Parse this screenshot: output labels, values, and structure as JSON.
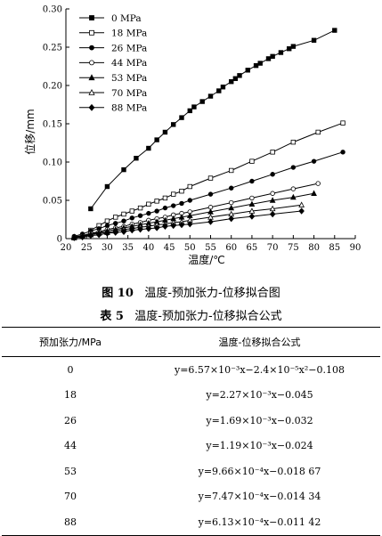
{
  "chart_data": {
    "type": "line",
    "xlabel": "温度/℃",
    "ylabel": "位移/mm",
    "xlim": [
      20,
      90
    ],
    "ylim": [
      0,
      0.3
    ],
    "xticks": [
      "20",
      "25",
      "30",
      "35",
      "40",
      "45",
      "50",
      "55",
      "60",
      "65",
      "70",
      "75",
      "80",
      "85",
      "90"
    ],
    "yticks": [
      "0",
      "0.05",
      "0.10",
      "0.15",
      "0.20",
      "0.25",
      "0.30"
    ],
    "legend_position": "top-left",
    "series": [
      {
        "name": "0 MPa",
        "marker": "square-filled",
        "x": [
          26,
          30,
          34,
          37,
          40,
          42,
          44,
          46,
          48,
          50,
          51,
          53,
          55,
          57,
          58,
          60,
          61,
          62,
          64,
          66,
          67,
          69,
          70,
          72,
          74,
          75,
          80,
          85
        ],
        "y": [
          0.039,
          0.068,
          0.09,
          0.105,
          0.118,
          0.129,
          0.139,
          0.149,
          0.158,
          0.167,
          0.172,
          0.179,
          0.186,
          0.193,
          0.198,
          0.205,
          0.209,
          0.213,
          0.22,
          0.226,
          0.229,
          0.235,
          0.238,
          0.243,
          0.248,
          0.251,
          0.259,
          0.272
        ]
      },
      {
        "name": "18 MPa",
        "marker": "square-open",
        "x": [
          26,
          28,
          30,
          32,
          34,
          36,
          38,
          40,
          42,
          44,
          46,
          48,
          50,
          55,
          60,
          65,
          70,
          75,
          81,
          87
        ],
        "y": [
          0.011,
          0.017,
          0.023,
          0.028,
          0.032,
          0.036,
          0.04,
          0.045,
          0.049,
          0.053,
          0.058,
          0.062,
          0.068,
          0.079,
          0.089,
          0.101,
          0.113,
          0.126,
          0.139,
          0.151
        ]
      },
      {
        "name": "26 MPa",
        "marker": "circle-filled",
        "x": [
          22,
          24,
          26,
          28,
          30,
          32,
          34,
          36,
          38,
          40,
          42,
          44,
          46,
          48,
          50,
          55,
          60,
          65,
          70,
          75,
          80,
          87
        ],
        "y": [
          0.003,
          0.006,
          0.01,
          0.013,
          0.017,
          0.02,
          0.023,
          0.027,
          0.03,
          0.033,
          0.036,
          0.04,
          0.043,
          0.046,
          0.05,
          0.058,
          0.066,
          0.075,
          0.084,
          0.093,
          0.101,
          0.113
        ]
      },
      {
        "name": "44 MPa",
        "marker": "circle-open",
        "x": [
          22,
          24,
          26,
          28,
          30,
          32,
          34,
          36,
          38,
          40,
          42,
          44,
          46,
          48,
          50,
          55,
          60,
          65,
          70,
          75,
          81
        ],
        "y": [
          0.002,
          0.004,
          0.007,
          0.009,
          0.012,
          0.014,
          0.016,
          0.019,
          0.021,
          0.024,
          0.026,
          0.028,
          0.031,
          0.033,
          0.035,
          0.041,
          0.047,
          0.053,
          0.059,
          0.065,
          0.072
        ]
      },
      {
        "name": "53 MPa",
        "marker": "triangle-filled",
        "x": [
          22,
          24,
          26,
          28,
          30,
          32,
          34,
          36,
          38,
          40,
          42,
          44,
          46,
          48,
          50,
          55,
          60,
          65,
          70,
          75,
          80
        ],
        "y": [
          0.002,
          0.004,
          0.006,
          0.008,
          0.01,
          0.012,
          0.014,
          0.016,
          0.018,
          0.02,
          0.022,
          0.024,
          0.026,
          0.028,
          0.03,
          0.035,
          0.04,
          0.045,
          0.05,
          0.054,
          0.059
        ]
      },
      {
        "name": "70 MPa",
        "marker": "triangle-open",
        "x": [
          22,
          24,
          26,
          28,
          30,
          32,
          34,
          36,
          38,
          40,
          42,
          44,
          46,
          48,
          50,
          55,
          60,
          65,
          70,
          77
        ],
        "y": [
          0.001,
          0.003,
          0.005,
          0.007,
          0.008,
          0.01,
          0.012,
          0.013,
          0.015,
          0.016,
          0.018,
          0.019,
          0.021,
          0.022,
          0.024,
          0.028,
          0.032,
          0.036,
          0.039,
          0.044
        ]
      },
      {
        "name": "88 MPa",
        "marker": "diamond-filled",
        "x": [
          22,
          24,
          26,
          28,
          30,
          32,
          34,
          36,
          38,
          40,
          42,
          44,
          46,
          48,
          50,
          55,
          60,
          65,
          70,
          77
        ],
        "y": [
          0.001,
          0.002,
          0.004,
          0.005,
          0.007,
          0.008,
          0.009,
          0.011,
          0.012,
          0.013,
          0.014,
          0.016,
          0.017,
          0.018,
          0.019,
          0.022,
          0.026,
          0.029,
          0.032,
          0.036
        ]
      }
    ]
  },
  "figure_caption": {
    "label": "图 10",
    "text": "温度-预加张力-位移拟合图"
  },
  "table": {
    "caption_label": "表 5",
    "caption_text": "温度-预加张力-位移拟合公式",
    "headers": [
      "预加张力/MPa",
      "温度-位移拟合公式"
    ],
    "rows": [
      {
        "tension": "0",
        "formula": "y=6.57×10⁻³x−2.4×10⁻⁵x²−0.108"
      },
      {
        "tension": "18",
        "formula": "y=2.27×10⁻³x−0.045"
      },
      {
        "tension": "26",
        "formula": "y=1.69×10⁻³x−0.032"
      },
      {
        "tension": "44",
        "formula": "y=1.19×10⁻³x−0.024"
      },
      {
        "tension": "53",
        "formula": "y=9.66×10⁻⁴x−0.018 67"
      },
      {
        "tension": "70",
        "formula": "y=7.47×10⁻⁴x−0.014 34"
      },
      {
        "tension": "88",
        "formula": "y=6.13×10⁻⁴x−0.011 42"
      }
    ]
  }
}
